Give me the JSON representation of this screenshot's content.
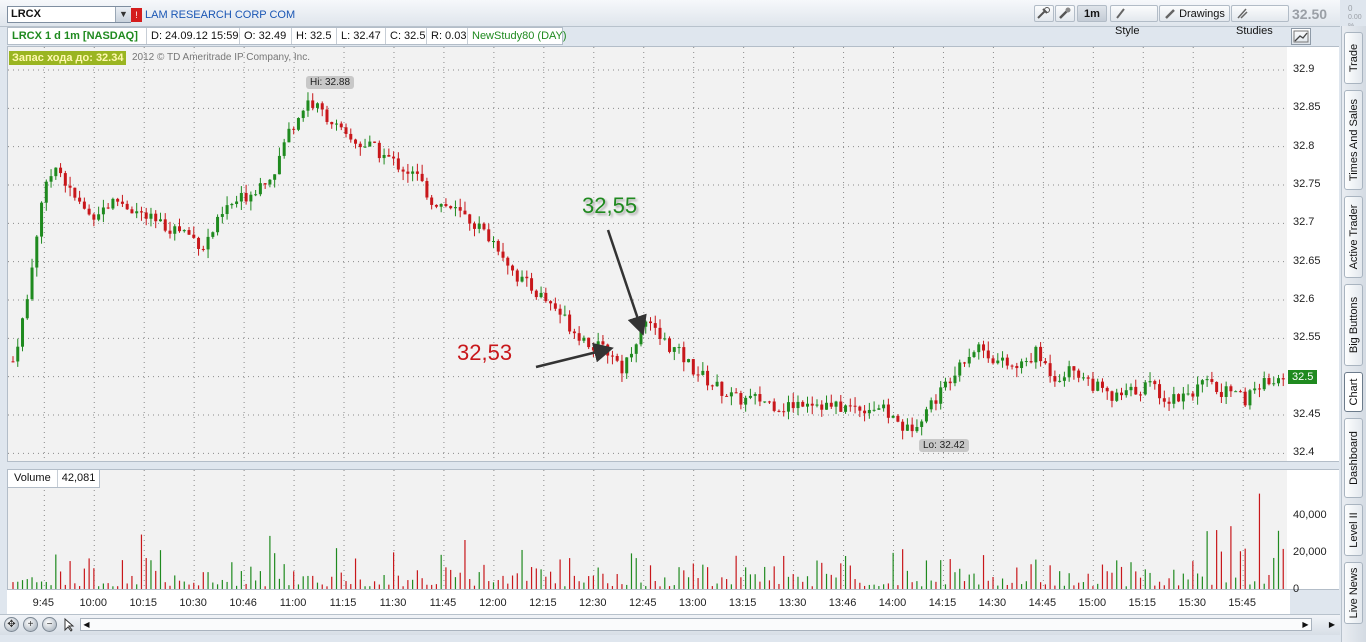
{
  "toolbar": {
    "symbol": "LRCX",
    "company_name": "LAM RESEARCH CORP COM",
    "company_flag": "!",
    "timeframe_button": "1m",
    "style_button": "Style",
    "drawings_button": "Drawings",
    "studies_button": "Studies",
    "last_price": "32.50",
    "change": "0",
    "change_pct": "0.00 %"
  },
  "info_bar": {
    "title": "LRCX 1 d 1m [NASDAQ]",
    "date": "D: 24.09.12 15:59",
    "open": "O: 32.49",
    "high": "H: 32.5",
    "low": "L: 32.47",
    "close": "C: 32.5",
    "range": "R: 0.03",
    "study": "NewStudy80 (DAY)"
  },
  "chart_overlay": {
    "stop_label": "Запас хода до: 32.34",
    "copyright": "2012 © TD Ameritrade IP Company, Inc.",
    "hi_label": "Hi: 32.88",
    "lo_label": "Lo: 32.42",
    "current_price_tag": "32.5",
    "annotation_green": "32,55",
    "annotation_red": "32,53",
    "color_up": "#1f8a1f",
    "color_down": "#c8171b"
  },
  "volume_panel": {
    "label": "Volume",
    "value": "42,081",
    "ticks": [
      "40,000",
      "20,000",
      "0"
    ]
  },
  "sidebar": {
    "tabs": [
      "Trade",
      "Times And Sales",
      "Active Trader",
      "Big Buttons",
      "Chart",
      "Dashboard",
      "Level II",
      "Live News"
    ],
    "active": "Chart"
  },
  "chart_data": {
    "type": "candlestick",
    "title": "LRCX 1 d 1m [NASDAQ]",
    "y_ticks": [
      32.9,
      32.85,
      32.8,
      32.75,
      32.7,
      32.65,
      32.6,
      32.55,
      32.5,
      32.45,
      32.4
    ],
    "ylim": [
      32.39,
      32.93
    ],
    "x_labels": [
      "9:45",
      "10:00",
      "10:15",
      "10:30",
      "10:46",
      "11:00",
      "11:15",
      "11:30",
      "11:45",
      "12:00",
      "12:15",
      "12:30",
      "12:45",
      "13:00",
      "13:15",
      "13:30",
      "13:46",
      "14:00",
      "14:15",
      "14:30",
      "14:45",
      "15:00",
      "15:15",
      "15:30",
      "15:45"
    ],
    "high": 32.88,
    "low": 32.42,
    "last": 32.5,
    "price_path": [
      [
        0,
        32.52
      ],
      [
        3,
        32.6
      ],
      [
        6,
        32.73
      ],
      [
        9,
        32.78
      ],
      [
        12,
        32.74
      ],
      [
        16,
        32.71
      ],
      [
        22,
        32.73
      ],
      [
        30,
        32.7
      ],
      [
        36,
        32.69
      ],
      [
        40,
        32.67
      ],
      [
        45,
        32.72
      ],
      [
        50,
        32.74
      ],
      [
        55,
        32.77
      ],
      [
        58,
        32.82
      ],
      [
        62,
        32.86
      ],
      [
        66,
        32.84
      ],
      [
        70,
        32.81
      ],
      [
        75,
        32.8
      ],
      [
        80,
        32.78
      ],
      [
        85,
        32.76
      ],
      [
        88,
        32.73
      ],
      [
        92,
        32.72
      ],
      [
        97,
        32.7
      ],
      [
        102,
        32.67
      ],
      [
        106,
        32.63
      ],
      [
        110,
        32.61
      ],
      [
        114,
        32.59
      ],
      [
        118,
        32.56
      ],
      [
        122,
        32.54
      ],
      [
        126,
        32.53
      ],
      [
        128,
        32.51
      ],
      [
        131,
        32.55
      ],
      [
        133,
        32.57
      ],
      [
        136,
        32.55
      ],
      [
        140,
        32.53
      ],
      [
        143,
        32.51
      ],
      [
        147,
        32.49
      ],
      [
        152,
        32.47
      ],
      [
        157,
        32.47
      ],
      [
        162,
        32.46
      ],
      [
        167,
        32.47
      ],
      [
        172,
        32.46
      ],
      [
        177,
        32.46
      ],
      [
        182,
        32.46
      ],
      [
        186,
        32.44
      ],
      [
        188,
        32.43
      ],
      [
        191,
        32.45
      ],
      [
        195,
        32.48
      ],
      [
        199,
        32.52
      ],
      [
        203,
        32.54
      ],
      [
        207,
        32.52
      ],
      [
        211,
        32.51
      ],
      [
        215,
        32.53
      ],
      [
        219,
        32.5
      ],
      [
        223,
        32.51
      ],
      [
        227,
        32.49
      ],
      [
        231,
        32.47
      ],
      [
        235,
        32.48
      ],
      [
        239,
        32.49
      ],
      [
        243,
        32.47
      ],
      [
        247,
        32.48
      ],
      [
        251,
        32.49
      ],
      [
        255,
        32.48
      ],
      [
        259,
        32.47
      ],
      [
        263,
        32.49
      ],
      [
        266,
        32.5
      ]
    ],
    "volume_max": 56000
  }
}
